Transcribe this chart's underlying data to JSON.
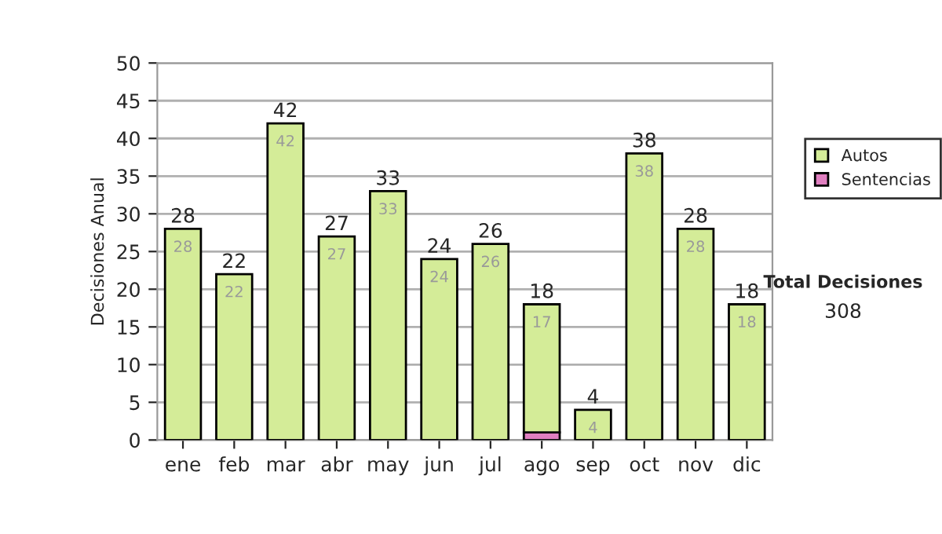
{
  "chart_data": {
    "type": "bar",
    "stacked": true,
    "ylabel": "Decisiones Anual",
    "categories": [
      "ene",
      "feb",
      "mar",
      "abr",
      "may",
      "jun",
      "jul",
      "ago",
      "sep",
      "oct",
      "nov",
      "dic"
    ],
    "series": [
      {
        "name": "Sentencias",
        "color": "#e07fc0",
        "values": [
          0,
          0,
          0,
          0,
          0,
          0,
          0,
          1,
          0,
          0,
          0,
          0
        ]
      },
      {
        "name": "Autos",
        "color": "#d4ec98",
        "values": [
          28,
          22,
          42,
          27,
          33,
          24,
          26,
          17,
          4,
          38,
          28,
          18
        ],
        "value_labels": [
          "28",
          "22",
          "42",
          "27",
          "33",
          "24",
          "26",
          "17",
          "4",
          "38",
          "28",
          "18"
        ]
      }
    ],
    "totals": [
      "28",
      "22",
      "42",
      "27",
      "33",
      "24",
      "26",
      "18",
      "4",
      "38",
      "28",
      "18"
    ],
    "ylim": [
      0,
      50
    ],
    "yticks": [
      0,
      5,
      10,
      15,
      20,
      25,
      30,
      35,
      40,
      45,
      50
    ],
    "grid": "y",
    "legend": "right",
    "annotations": [
      "Total Decisiones",
      "308"
    ]
  }
}
